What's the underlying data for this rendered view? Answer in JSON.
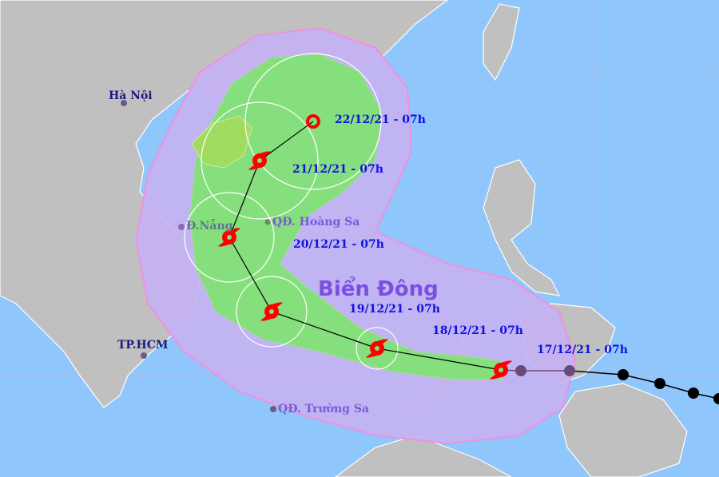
{
  "map": {
    "sea_name": "Biển Đông",
    "places": [
      {
        "name": "Hà Nội"
      },
      {
        "name": "Đ.Nẵng"
      },
      {
        "name": "QĐ. Hoàng Sa"
      },
      {
        "name": "TP.HCM"
      },
      {
        "name": "QĐ. Trường Sa"
      }
    ],
    "time_labels": [
      "22/12/21 - 07h",
      "21/12/21 - 07h",
      "20/12/21 - 07h",
      "19/12/21 - 07h",
      "18/12/21 - 07h",
      "17/12/21 - 07h"
    ],
    "colors": {
      "sea": "#8fc6fb",
      "land": "#c0c0c0",
      "risk_zone": "#c4b2f2",
      "risk_zone_border": "#f090e0",
      "strong_wind_zone": "#86df7d",
      "forecast_storm": "#ff0000",
      "past_storm_recent": "#6b4a7a",
      "past_storm_earlier": "#000000"
    },
    "icons": {
      "forecast": "typhoon-red-icon",
      "past": "typhoon-black-icon",
      "place": "city-dot-icon"
    }
  }
}
